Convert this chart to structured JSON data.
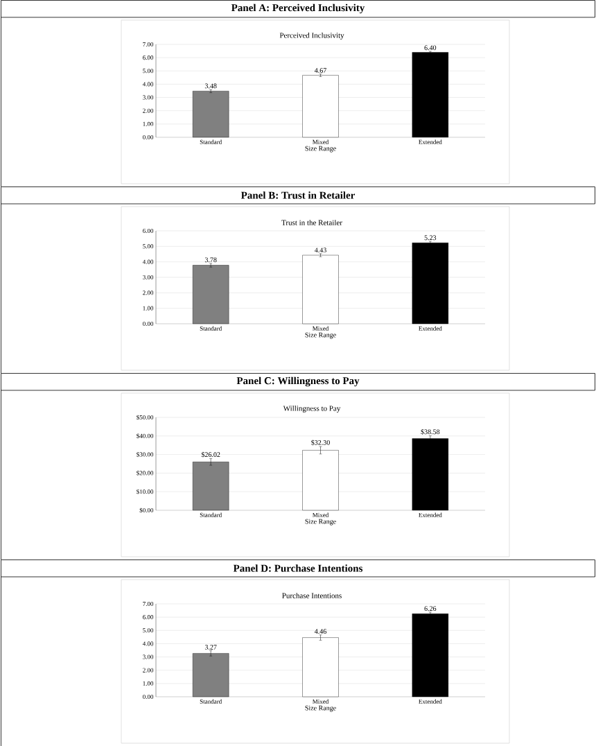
{
  "chart_data": [
    {
      "type": "bar",
      "title": "Panel A: Perceived Inclusivity",
      "subtitle": "Perceived Inclusivity",
      "xlabel": "Size Range",
      "categories": [
        "Standard",
        "Mixed",
        "Extended"
      ],
      "values": [
        3.48,
        4.67,
        6.4
      ],
      "errors": [
        0.12,
        0.1,
        0.08
      ],
      "value_labels": [
        "3.48",
        "4.67",
        "6.40"
      ],
      "colors": [
        "#808080",
        "#ffffff",
        "#000000"
      ],
      "ylim": [
        0,
        7
      ],
      "yticks": [
        {
          "value": 0,
          "label": "0.00"
        },
        {
          "value": 1,
          "label": "1.00"
        },
        {
          "value": 2,
          "label": "2.00"
        },
        {
          "value": 3,
          "label": "3.00"
        },
        {
          "value": 4,
          "label": "4.00"
        },
        {
          "value": 5,
          "label": "5.00"
        },
        {
          "value": 6,
          "label": "6.00"
        },
        {
          "value": 7,
          "label": "7.00"
        }
      ],
      "grid": "y"
    },
    {
      "type": "bar",
      "title": "Panel B: Trust in Retailer",
      "subtitle": "Trust in the Retailer",
      "xlabel": "Size Range",
      "categories": [
        "Standard",
        "Mixed",
        "Extended"
      ],
      "values": [
        3.78,
        4.43,
        5.23
      ],
      "errors": [
        0.12,
        0.1,
        0.1
      ],
      "value_labels": [
        "3.78",
        "4.43",
        "5.23"
      ],
      "colors": [
        "#808080",
        "#ffffff",
        "#000000"
      ],
      "ylim": [
        0,
        6
      ],
      "yticks": [
        {
          "value": 0,
          "label": "0.00"
        },
        {
          "value": 1,
          "label": "1.00"
        },
        {
          "value": 2,
          "label": "2.00"
        },
        {
          "value": 3,
          "label": "3.00"
        },
        {
          "value": 4,
          "label": "4.00"
        },
        {
          "value": 5,
          "label": "5.00"
        },
        {
          "value": 6,
          "label": "6.00"
        }
      ],
      "grid": "y"
    },
    {
      "type": "bar",
      "title": "Panel C: Willingness to Pay",
      "subtitle": "Willingness to Pay",
      "xlabel": "Size Range",
      "categories": [
        "Standard",
        "Mixed",
        "Extended"
      ],
      "values": [
        26.02,
        32.3,
        38.58
      ],
      "errors": [
        1.8,
        2.0,
        1.5
      ],
      "value_labels": [
        "$26.02",
        "$32.30",
        "$38.58"
      ],
      "colors": [
        "#808080",
        "#ffffff",
        "#000000"
      ],
      "ylim": [
        0,
        50
      ],
      "yticks": [
        {
          "value": 0,
          "label": "$0.00"
        },
        {
          "value": 10,
          "label": "$10.00"
        },
        {
          "value": 20,
          "label": "$20.00"
        },
        {
          "value": 30,
          "label": "$30.00"
        },
        {
          "value": 40,
          "label": "$40.00"
        },
        {
          "value": 50,
          "label": "$50.00"
        }
      ],
      "grid": "y"
    },
    {
      "type": "bar",
      "title": "Panel D: Purchase Intentions",
      "subtitle": "Purchase Intentions",
      "xlabel": "Size Range",
      "categories": [
        "Standard",
        "Mixed",
        "Extended"
      ],
      "values": [
        3.27,
        4.46,
        6.26
      ],
      "errors": [
        0.2,
        0.2,
        0.12
      ],
      "value_labels": [
        "3.27",
        "4.46",
        "6.26"
      ],
      "colors": [
        "#808080",
        "#ffffff",
        "#000000"
      ],
      "ylim": [
        0,
        7
      ],
      "yticks": [
        {
          "value": 0,
          "label": "0.00"
        },
        {
          "value": 1,
          "label": "1.00"
        },
        {
          "value": 2,
          "label": "2.00"
        },
        {
          "value": 3,
          "label": "3.00"
        },
        {
          "value": 4,
          "label": "4.00"
        },
        {
          "value": 5,
          "label": "5.00"
        },
        {
          "value": 6,
          "label": "6.00"
        },
        {
          "value": 7,
          "label": "7.00"
        }
      ],
      "grid": "y"
    }
  ]
}
